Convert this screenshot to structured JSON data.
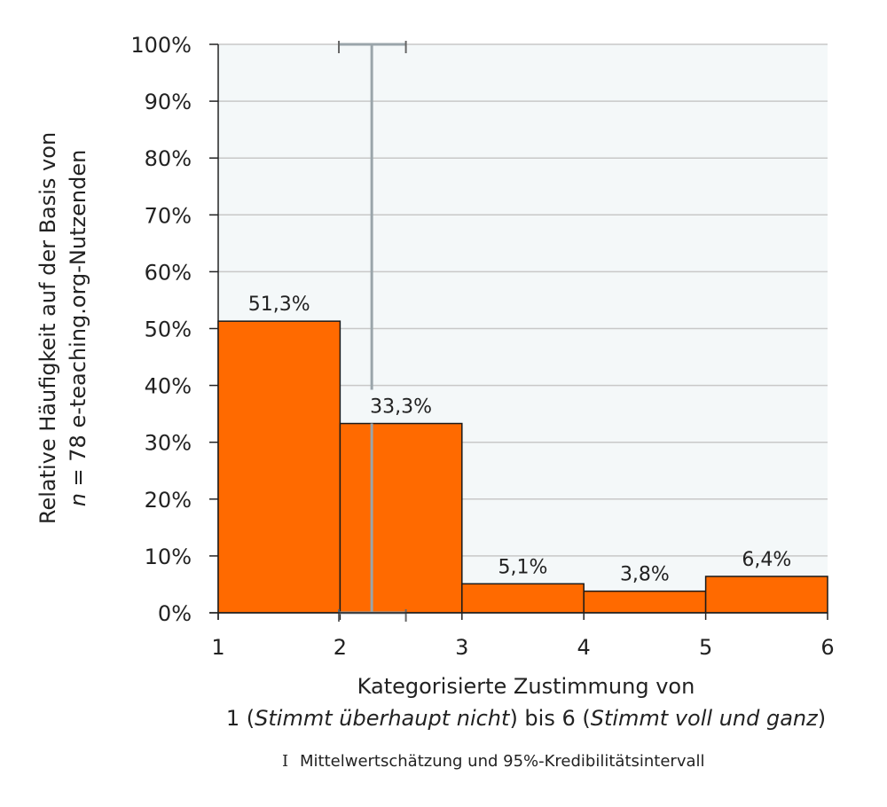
{
  "chart_data": {
    "type": "bar",
    "bins": [
      [
        1,
        2
      ],
      [
        2,
        3
      ],
      [
        3,
        4
      ],
      [
        4,
        5
      ],
      [
        5,
        6
      ]
    ],
    "values": [
      51.3,
      33.3,
      5.1,
      3.8,
      6.4
    ],
    "data_labels": [
      "51,3%",
      "33,3%",
      "5,1%",
      "3,8%",
      "6,4%"
    ],
    "xticks": [
      "1",
      "2",
      "3",
      "4",
      "5",
      "6"
    ],
    "yticks": [
      "0%",
      "10%",
      "20%",
      "30%",
      "40%",
      "50%",
      "60%",
      "70%",
      "80%",
      "90%",
      "100%"
    ],
    "xlim": [
      1,
      6
    ],
    "ylim": [
      0,
      100
    ],
    "xlabel_line1": "Kategorisierte Zustimmung von",
    "xlabel_line2": {
      "a": "1 (",
      "b": "Stimmt überhaupt nicht",
      "c": ") bis 6 (",
      "d": "Stimmt voll und ganz",
      "e": ")"
    },
    "ylabel_line1": "Relative Häufigkeit auf der Basis von",
    "ylabel_line2": {
      "n": "n",
      "rest": " = 78 e-teaching.org-Nutzenden"
    },
    "mean_estimate": 2.26,
    "credible_interval_95": [
      1.99,
      2.54
    ],
    "legend": {
      "symbol": "I",
      "text": "Mittelwertschätzung und 95%-Kredibilitätsintervall"
    },
    "grid": "horizontal",
    "colors": {
      "bar": "#ff6a00",
      "plot_bg": "#f4f8f9",
      "grid": "#c8c8c8",
      "interval": "#9aa5aa"
    }
  }
}
